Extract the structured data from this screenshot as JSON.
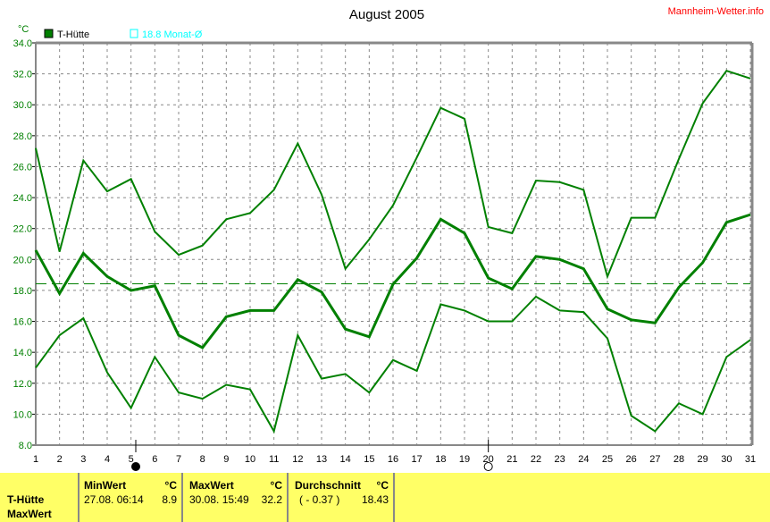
{
  "chart_data": {
    "type": "line",
    "title": "August 2005",
    "ylabel": "°C",
    "ylim": [
      8,
      34
    ],
    "yticks": [
      "8.0",
      "10.0",
      "12.0",
      "14.0",
      "16.0",
      "18.0",
      "20.0",
      "22.0",
      "24.0",
      "26.0",
      "28.0",
      "30.0",
      "32.0",
      "34.0"
    ],
    "x": [
      1,
      2,
      3,
      4,
      5,
      6,
      7,
      8,
      9,
      10,
      11,
      12,
      13,
      14,
      15,
      16,
      17,
      18,
      19,
      20,
      21,
      22,
      23,
      24,
      25,
      26,
      27,
      28,
      29,
      30,
      31
    ],
    "grid": true,
    "series": [
      {
        "name": "T-Hütte",
        "role": "max",
        "color": "#008000",
        "values": [
          27.2,
          20.5,
          26.4,
          24.4,
          25.2,
          21.8,
          20.3,
          20.9,
          22.6,
          23.0,
          24.5,
          27.5,
          24.2,
          19.4,
          21.3,
          23.5,
          26.6,
          29.8,
          29.1,
          22.1,
          21.7,
          25.1,
          25.0,
          24.5,
          18.9,
          22.7,
          22.7,
          26.5,
          30.1,
          32.2,
          31.7
        ]
      },
      {
        "role": "mean",
        "color": "#008000",
        "values": [
          20.6,
          17.8,
          20.4,
          18.9,
          18.0,
          18.3,
          15.1,
          14.3,
          16.3,
          16.7,
          16.7,
          18.7,
          17.9,
          15.5,
          15.0,
          18.4,
          20.1,
          22.6,
          21.7,
          18.8,
          18.1,
          20.2,
          20.0,
          19.4,
          16.8,
          16.1,
          15.9,
          18.2,
          19.8,
          22.4,
          22.9
        ]
      },
      {
        "role": "min",
        "color": "#008000",
        "values": [
          13.0,
          15.1,
          16.2,
          12.7,
          10.4,
          13.7,
          11.4,
          11.0,
          11.9,
          11.6,
          8.9,
          15.1,
          12.3,
          12.6,
          11.4,
          13.5,
          12.8,
          17.1,
          16.7,
          16.0,
          16.0,
          17.6,
          16.7,
          16.6,
          14.9,
          9.9,
          8.9,
          10.7,
          10.0,
          13.7,
          14.8
        ]
      }
    ],
    "monthly_average_line": 18.43,
    "legend": [
      {
        "label": "T-Hütte",
        "color": "#008000"
      },
      {
        "label": "18.8 Monat-Ø",
        "color": "#00ffff"
      }
    ],
    "moon_phases": [
      {
        "day": 5.2,
        "phase": "full"
      },
      {
        "day": 20,
        "phase": "new"
      }
    ]
  },
  "site": "Mannheim-Wetter.info",
  "footer": {
    "row_label1": "T-Hütte",
    "row_label2": "MaxWert",
    "min": {
      "header": "MinWert",
      "unit": "°C",
      "date": "27.08.  06:14",
      "value": "8.9"
    },
    "max": {
      "header": "MaxWert",
      "unit": "°C",
      "date": "30.08.  15:49",
      "value": "32.2"
    },
    "avg": {
      "header": "Durchschnitt",
      "unit": "°C",
      "diff": "( - 0.37 )",
      "value": "18.43"
    }
  }
}
